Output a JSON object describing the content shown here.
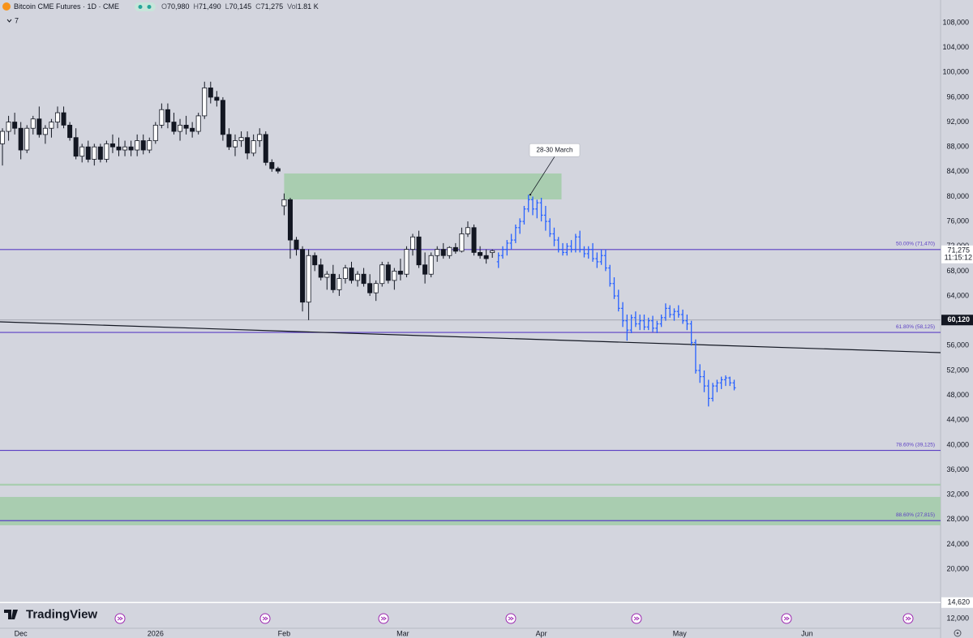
{
  "chart_data": {
    "type": "candlestick",
    "header": {
      "symbol": "Bitcoin CME Futures · 1D · CME",
      "legend": [
        {
          "key": "O",
          "value": "70,980"
        },
        {
          "key": "H",
          "value": "71,490"
        },
        {
          "key": "L",
          "value": "70,145"
        },
        {
          "key": "C",
          "value": "71,275"
        },
        {
          "key": "Vol",
          "value": "1.81 K"
        }
      ],
      "indicators": "7"
    },
    "brand": "TradingView",
    "background": "#d3d5de",
    "up_color": "#ffffff",
    "down_color": "#131722",
    "ylim": [
      10480,
      111655
    ],
    "xlim": [
      -0.4,
      153.2
    ],
    "grid": false,
    "yticks": [
      {
        "value": 108000,
        "label": "108,000"
      },
      {
        "value": 104000,
        "label": "104,000"
      },
      {
        "value": 100000,
        "label": "100,000"
      },
      {
        "value": 96000,
        "label": "96,000"
      },
      {
        "value": 92000,
        "label": "92,000"
      },
      {
        "value": 88000,
        "label": "88,000"
      },
      {
        "value": 84000,
        "label": "84,000"
      },
      {
        "value": 80000,
        "label": "80,000"
      },
      {
        "value": 76000,
        "label": "76,000"
      },
      {
        "value": 72000,
        "label": "72,000"
      },
      {
        "value": 68000,
        "label": "68,000"
      },
      {
        "value": 64000,
        "label": "64,000"
      },
      {
        "value": 56000,
        "label": "56,000"
      },
      {
        "value": 52000,
        "label": "52,000"
      },
      {
        "value": 48000,
        "label": "48,000"
      },
      {
        "value": 44000,
        "label": "44,000"
      },
      {
        "value": 40000,
        "label": "40,000"
      },
      {
        "value": 36000,
        "label": "36,000"
      },
      {
        "value": 32000,
        "label": "32,000"
      },
      {
        "value": 28000,
        "label": "28,000"
      },
      {
        "value": 24000,
        "label": "24,000"
      },
      {
        "value": 20000,
        "label": "20,000"
      },
      {
        "value": 12000,
        "label": "12,000"
      }
    ],
    "xticks": [
      {
        "value": 3,
        "label": "Dec"
      },
      {
        "value": 25,
        "label": "2026"
      },
      {
        "value": 46,
        "label": "Feb"
      },
      {
        "value": 65.4,
        "label": "Mar"
      },
      {
        "value": 88,
        "label": "Apr"
      },
      {
        "value": 110.6,
        "label": "May"
      },
      {
        "value": 131.4,
        "label": "Jun"
      }
    ],
    "ohlc": [
      [
        88500,
        91000,
        85000,
        90500
      ],
      [
        90500,
        93000,
        89000,
        92000
      ],
      [
        92000,
        93500,
        90000,
        91000
      ],
      [
        91000,
        92000,
        86000,
        87500
      ],
      [
        87500,
        91500,
        87000,
        91000
      ],
      [
        91000,
        93000,
        90000,
        92500
      ],
      [
        92500,
        94500,
        89500,
        90000
      ],
      [
        90000,
        91500,
        88500,
        91000
      ],
      [
        91000,
        92500,
        89500,
        92000
      ],
      [
        92000,
        94500,
        91000,
        93500
      ],
      [
        93500,
        94500,
        91000,
        91500
      ],
      [
        91500,
        92000,
        89000,
        89500
      ],
      [
        89500,
        91000,
        86000,
        86500
      ],
      [
        86500,
        88500,
        85500,
        88000
      ],
      [
        88000,
        89000,
        85500,
        86000
      ],
      [
        86000,
        88500,
        85000,
        88000
      ],
      [
        88000,
        88500,
        85500,
        86000
      ],
      [
        86000,
        89000,
        85500,
        88500
      ],
      [
        88500,
        90000,
        87000,
        88000
      ],
      [
        88000,
        89500,
        86500,
        87500
      ],
      [
        87500,
        89000,
        86500,
        88000
      ],
      [
        88000,
        89000,
        86500,
        87500
      ],
      [
        87500,
        90000,
        86500,
        89000
      ],
      [
        89000,
        90000,
        86800,
        87500
      ],
      [
        87500,
        89500,
        87000,
        89000
      ],
      [
        89000,
        92000,
        88500,
        91500
      ],
      [
        91500,
        95000,
        91000,
        94000
      ],
      [
        94000,
        95000,
        91000,
        92000
      ],
      [
        92000,
        93500,
        90000,
        90500
      ],
      [
        90500,
        92500,
        89000,
        91500
      ],
      [
        91500,
        93000,
        90000,
        91000
      ],
      [
        91000,
        92000,
        89500,
        90500
      ],
      [
        90500,
        93500,
        90000,
        93000
      ],
      [
        93000,
        98500,
        92500,
        97500
      ],
      [
        97500,
        98500,
        95000,
        96000
      ],
      [
        96000,
        97000,
        94500,
        95500
      ],
      [
        95500,
        96000,
        89000,
        90000
      ],
      [
        90000,
        91000,
        87500,
        88000
      ],
      [
        88000,
        90000,
        86500,
        89000
      ],
      [
        89000,
        90500,
        88000,
        89500
      ],
      [
        89500,
        90500,
        86000,
        87000
      ],
      [
        87000,
        90000,
        86500,
        89000
      ],
      [
        89000,
        91000,
        88000,
        90000
      ],
      [
        90000,
        90500,
        85000,
        85500
      ],
      [
        85500,
        86000,
        84000,
        84500
      ],
      [
        84500,
        84800,
        83700,
        84100
      ],
      [
        78500,
        80500,
        77000,
        79500
      ],
      [
        79500,
        79800,
        70000,
        73000
      ],
      [
        73000,
        73500,
        70500,
        71500
      ],
      [
        71500,
        72000,
        61500,
        63000
      ],
      [
        63000,
        71500,
        60120,
        70500
      ],
      [
        70500,
        71000,
        68000,
        69000
      ],
      [
        69000,
        70000,
        66500,
        67000
      ],
      [
        67000,
        68000,
        65000,
        67500
      ],
      [
        67500,
        69000,
        64500,
        65000
      ],
      [
        65000,
        67500,
        64000,
        66800
      ],
      [
        66800,
        69000,
        66000,
        68500
      ],
      [
        68500,
        69500,
        66000,
        66500
      ],
      [
        66500,
        68000,
        65500,
        67500
      ],
      [
        67500,
        68500,
        65500,
        66000
      ],
      [
        66000,
        67500,
        64000,
        64500
      ],
      [
        64500,
        66500,
        63200,
        66000
      ],
      [
        66000,
        69500,
        65500,
        69000
      ],
      [
        69000,
        69500,
        66000,
        66500
      ],
      [
        66500,
        68500,
        65000,
        68000
      ],
      [
        68000,
        70000,
        66500,
        67500
      ],
      [
        67500,
        72000,
        67000,
        71500
      ],
      [
        71500,
        74000,
        70500,
        73500
      ],
      [
        73500,
        74500,
        68500,
        69000
      ],
      [
        69000,
        71000,
        66000,
        67500
      ],
      [
        67500,
        71000,
        67000,
        70500
      ],
      [
        70500,
        72000,
        69500,
        71500
      ],
      [
        71500,
        72500,
        70000,
        70500
      ],
      [
        70500,
        72000,
        70000,
        71800
      ],
      [
        71800,
        72500,
        70800,
        71200
      ],
      [
        71200,
        75000,
        71000,
        74000
      ],
      [
        74000,
        76000,
        73500,
        75000
      ],
      [
        75000,
        75500,
        70500,
        71000
      ],
      [
        71000,
        72000,
        70000,
        70500
      ],
      [
        70500,
        71500,
        69200,
        70000
      ],
      [
        70980,
        71490,
        70145,
        71275
      ]
    ],
    "projection": {
      "color": "#2962ff",
      "x": [
        81,
        81.7,
        82.4,
        83.1,
        83.8,
        84.5,
        85.2,
        85.9,
        86.6,
        87.3,
        88,
        88.7,
        89.4,
        90.1,
        90.8,
        91.5,
        92.2,
        92.9,
        93.6,
        94.3,
        95,
        95.7,
        96.4,
        97.1,
        97.8,
        98.5,
        99.2,
        99.9,
        100.6,
        101.3,
        102,
        102.7,
        103.4,
        104.1,
        104.8,
        105.5,
        106.2,
        106.9,
        107.6,
        108.3,
        109,
        109.7,
        110.4,
        111.1,
        111.8,
        112.5,
        113.2,
        113.9,
        114.6,
        115.3,
        116,
        116.7,
        117.4,
        118.1,
        118.8,
        119.5
      ],
      "ohlc": [
        [
          69500,
          71000,
          68500,
          70500
        ],
        [
          70500,
          72000,
          70000,
          71500
        ],
        [
          71500,
          73000,
          70500,
          72500
        ],
        [
          72500,
          74000,
          71500,
          73000
        ],
        [
          73000,
          75500,
          72500,
          75000
        ],
        [
          75000,
          76500,
          74000,
          76000
        ],
        [
          76000,
          78500,
          75500,
          78000
        ],
        [
          78000,
          80300,
          77500,
          79500
        ],
        [
          79500,
          80000,
          77000,
          78000
        ],
        [
          78000,
          79500,
          76500,
          79000
        ],
        [
          79000,
          79800,
          76000,
          77000
        ],
        [
          77000,
          78500,
          74500,
          76000
        ],
        [
          76000,
          76500,
          73500,
          74000
        ],
        [
          74000,
          75000,
          72000,
          73000
        ],
        [
          73000,
          73500,
          71000,
          71500
        ],
        [
          71500,
          72500,
          70500,
          71000
        ],
        [
          71000,
          72500,
          70500,
          72000
        ],
        [
          72000,
          73000,
          71000,
          71500
        ],
        [
          71500,
          74000,
          71000,
          73500
        ],
        [
          73500,
          74500,
          71000,
          71500
        ],
        [
          71500,
          72000,
          70200,
          70800
        ],
        [
          70800,
          72000,
          70000,
          71500
        ],
        [
          71500,
          72500,
          69500,
          70000
        ],
        [
          70000,
          71000,
          68500,
          69500
        ],
        [
          69500,
          71500,
          69000,
          70500
        ],
        [
          70500,
          71500,
          68000,
          68500
        ],
        [
          68500,
          69000,
          65500,
          66000
        ],
        [
          66000,
          67000,
          63500,
          64000
        ],
        [
          64000,
          65000,
          61500,
          62000
        ],
        [
          62000,
          63000,
          59000,
          60000
        ],
        [
          60000,
          61000,
          56800,
          58500
        ],
        [
          58500,
          61000,
          58000,
          60500
        ],
        [
          60500,
          61500,
          59000,
          59500
        ],
        [
          59500,
          61000,
          58500,
          60000
        ],
        [
          60000,
          61000,
          58500,
          59000
        ],
        [
          59000,
          60500,
          58500,
          60000
        ],
        [
          60000,
          60800,
          58200,
          58800
        ],
        [
          58800,
          60000,
          58000,
          59500
        ],
        [
          59500,
          61000,
          59000,
          60500
        ],
        [
          60500,
          62800,
          60000,
          62000
        ],
        [
          62000,
          62500,
          60500,
          61000
        ],
        [
          61000,
          62000,
          60000,
          61500
        ],
        [
          61500,
          62500,
          60500,
          61000
        ],
        [
          61000,
          61800,
          59500,
          60000
        ],
        [
          60000,
          61000,
          58500,
          59500
        ],
        [
          59500,
          60000,
          56000,
          56500
        ],
        [
          56500,
          57000,
          51500,
          52000
        ],
        [
          52000,
          53000,
          50000,
          51000
        ],
        [
          51000,
          52000,
          48500,
          49500
        ],
        [
          49500,
          50500,
          46200,
          47500
        ],
        [
          47500,
          50000,
          47000,
          49500
        ],
        [
          49500,
          50500,
          48500,
          50000
        ],
        [
          50000,
          51000,
          49000,
          50500
        ],
        [
          50500,
          51200,
          49500,
          50800
        ],
        [
          50800,
          51000,
          49500,
          50000
        ],
        [
          50000,
          50500,
          48800,
          49200
        ]
      ]
    },
    "hlines": [
      {
        "value": 71470,
        "label": "50.00% (71,470)",
        "color": "#5b3fc4"
      },
      {
        "value": 58125,
        "label": "61.80% (58,125)",
        "color": "#5b3fc4"
      },
      {
        "value": 39125,
        "label": "78.60% (39,125)",
        "color": "#5b3fc4"
      },
      {
        "value": 27815,
        "label": "88.60% (27,815)",
        "color": "#5b3fc4"
      }
    ],
    "zones": [
      {
        "x": [
          46,
          91.3
        ],
        "y": [
          79540,
          83720
        ],
        "color": "#a9cdb0"
      },
      {
        "x": [
          -0.4,
          153.2
        ],
        "y": [
          27060,
          31630
        ],
        "color": "#a9cdb0"
      },
      {
        "x": [
          -0.4,
          153.2
        ],
        "y": [
          33450,
          33750
        ],
        "color": "#a9cdb0"
      }
    ],
    "trendline": {
      "x": [
        -0.4,
        153.2
      ],
      "y": [
        59830,
        54870
      ],
      "color": "#131722"
    },
    "annotation": {
      "text": "28-30 March",
      "x": 86.2,
      "y": 80300
    },
    "price_labels": [
      {
        "value": 71275,
        "label": "71,275",
        "sub": "11:15:12",
        "color": "#ffffff",
        "text_color": "#131722"
      },
      {
        "value": 60120,
        "label": "60,120",
        "color": "#131722",
        "text_color": "#ffffff"
      },
      {
        "value": 14620,
        "label": "14,620",
        "color": "#ffffff",
        "text_color": "#131722"
      }
    ]
  }
}
